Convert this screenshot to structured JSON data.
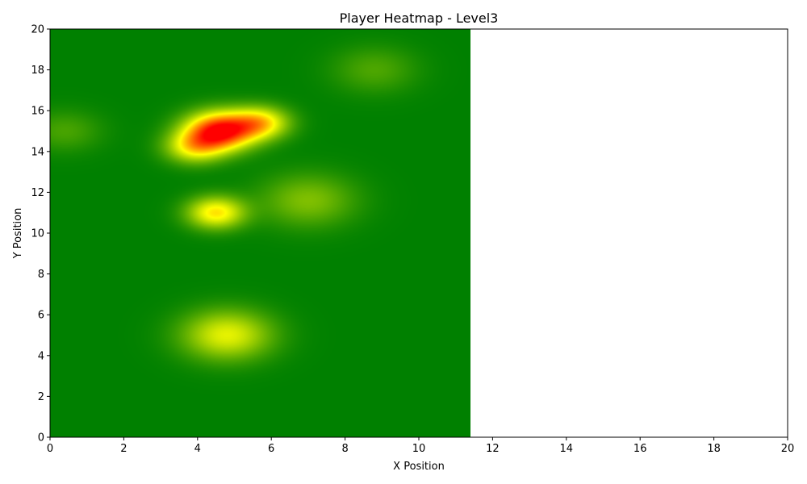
{
  "chart_data": {
    "type": "heatmap",
    "title": "Player Heatmap - Level3",
    "xlabel": "X Position",
    "ylabel": "Y Position",
    "xlim": [
      0,
      20
    ],
    "ylim": [
      0,
      20
    ],
    "xticks": [
      "0",
      "2",
      "4",
      "6",
      "8",
      "10",
      "12",
      "14",
      "16",
      "18",
      "20"
    ],
    "yticks": [
      "0",
      "2",
      "4",
      "6",
      "8",
      "10",
      "12",
      "14",
      "16",
      "18",
      "20"
    ],
    "data_extent": {
      "x": [
        0,
        11.4
      ],
      "y": [
        0,
        20
      ]
    },
    "grid": false,
    "colormap": [
      "#008000",
      "#ffff00",
      "#ff0000"
    ],
    "hotspots": [
      {
        "x": 4.6,
        "y": 15.0,
        "intensity": 1.0,
        "sigma": 0.65
      },
      {
        "x": 5.7,
        "y": 15.4,
        "intensity": 0.55,
        "sigma": 0.55
      },
      {
        "x": 3.9,
        "y": 14.2,
        "intensity": 0.45,
        "sigma": 0.55
      },
      {
        "x": 4.5,
        "y": 11.0,
        "intensity": 0.55,
        "sigma": 0.55
      },
      {
        "x": 4.8,
        "y": 5.0,
        "intensity": 0.45,
        "sigma": 0.85
      },
      {
        "x": 7.0,
        "y": 11.6,
        "intensity": 0.25,
        "sigma": 0.9
      },
      {
        "x": 8.8,
        "y": 18.0,
        "intensity": 0.15,
        "sigma": 0.8
      },
      {
        "x": 0.4,
        "y": 15.0,
        "intensity": 0.14,
        "sigma": 0.7
      }
    ]
  }
}
